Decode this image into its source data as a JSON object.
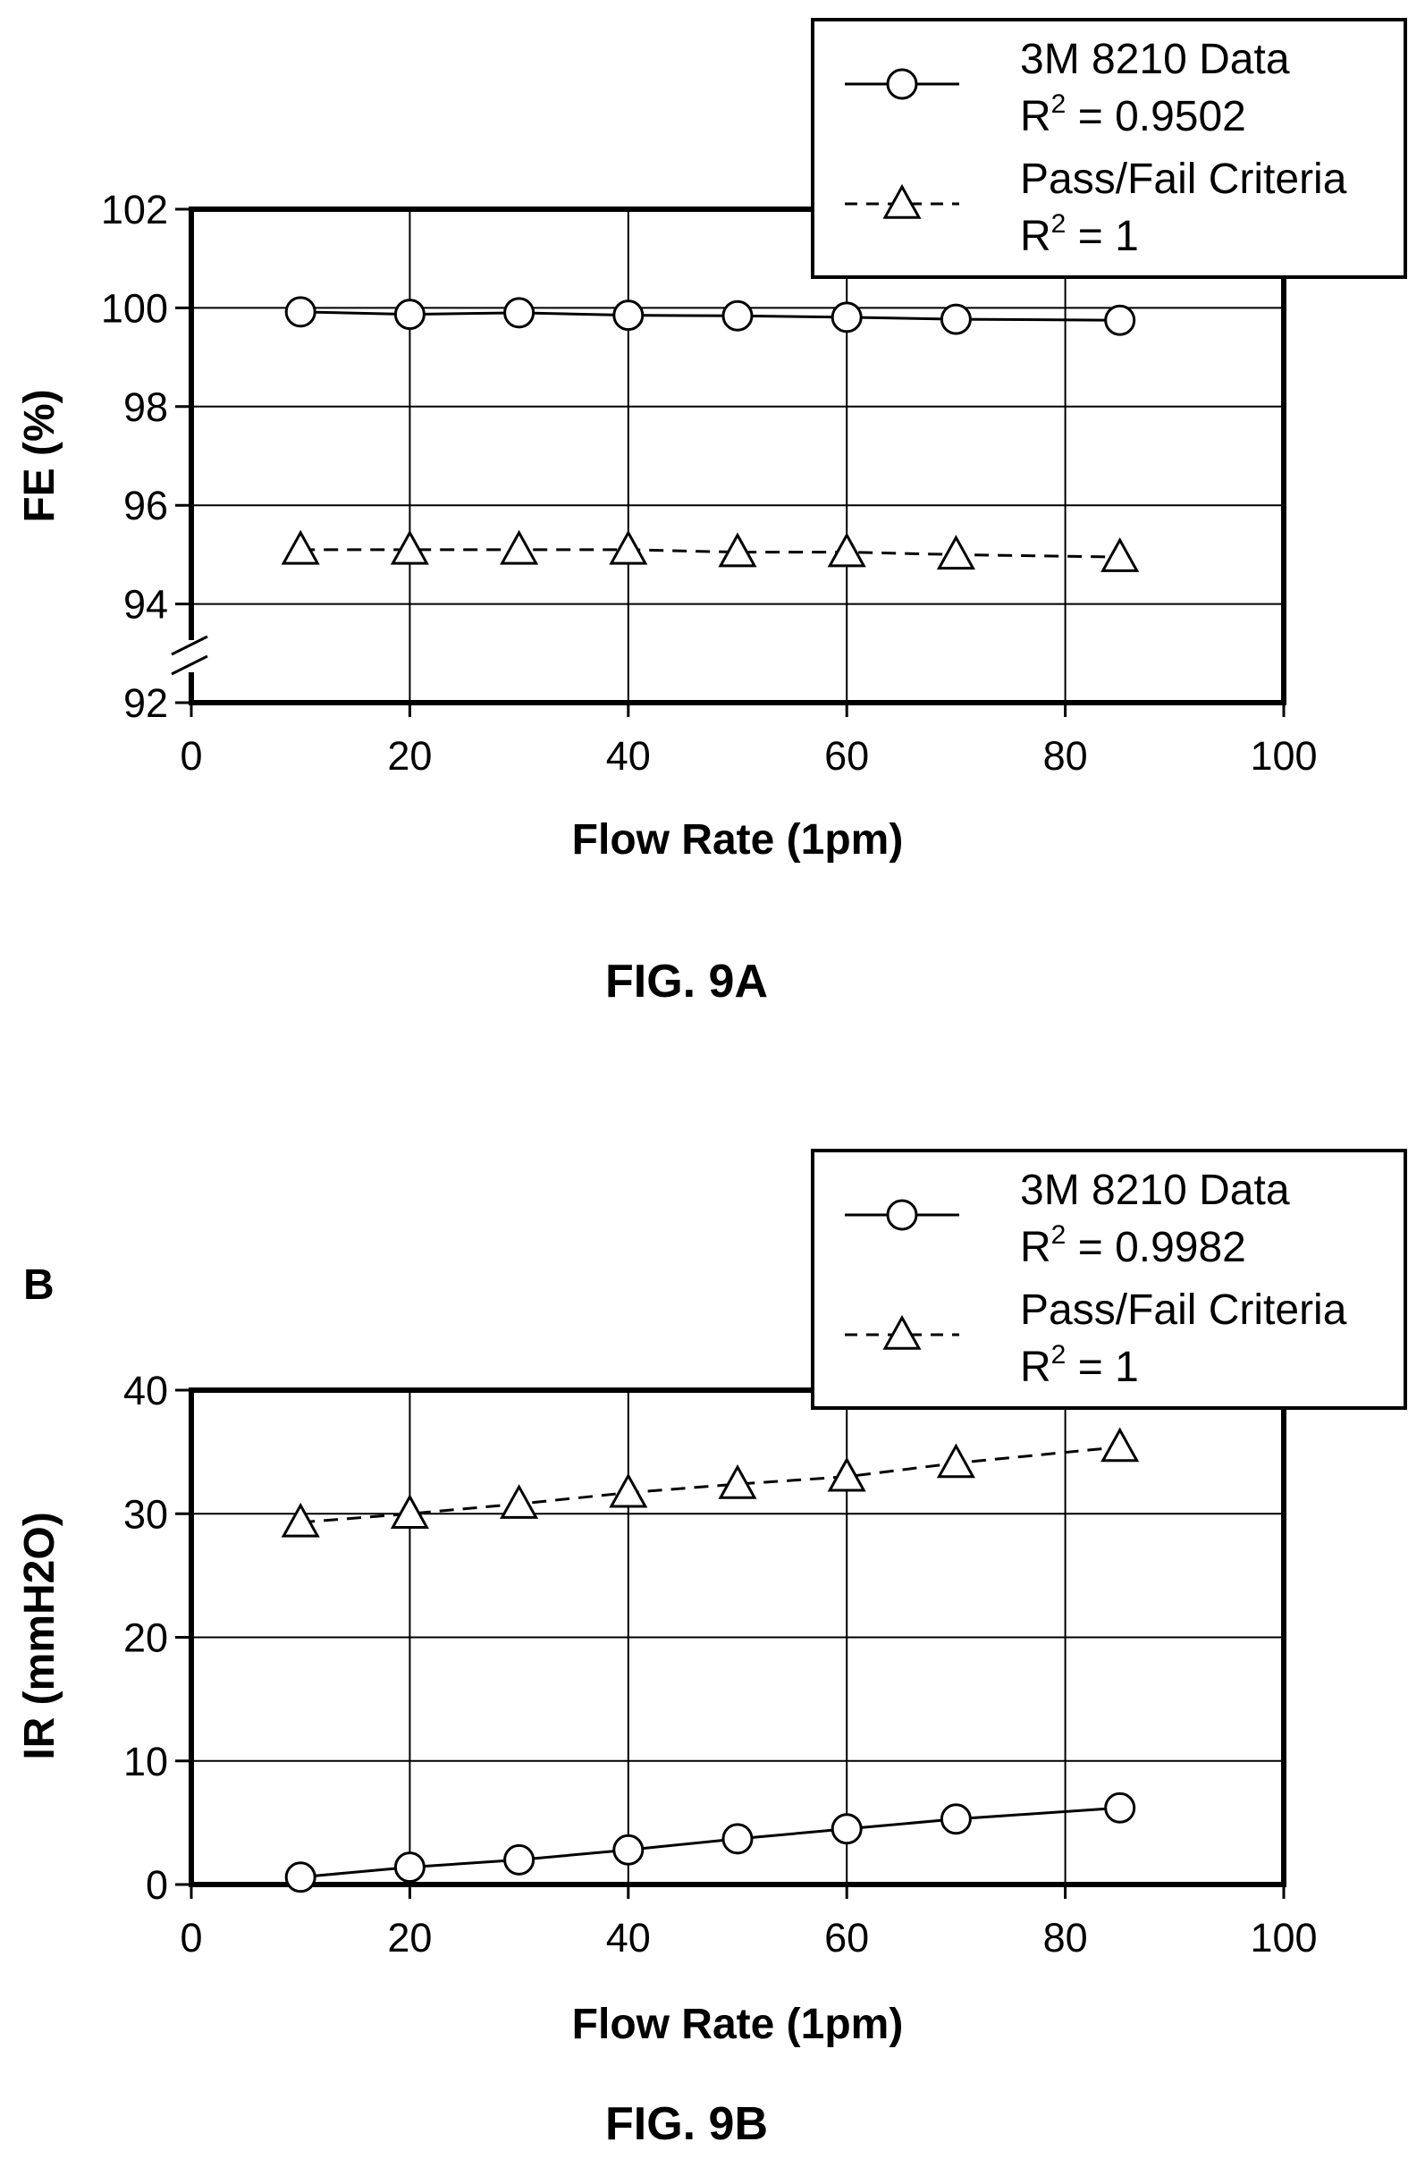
{
  "chart_data": [
    {
      "type": "line",
      "figure_label": "FIG. 9A",
      "panel_label": "",
      "xlabel": "Flow Rate (1pm)",
      "ylabel": "FE (%)",
      "xlim": [
        0,
        100
      ],
      "ylim": [
        92,
        102
      ],
      "xticks": [
        "0",
        "20",
        "40",
        "60",
        "80",
        "100"
      ],
      "yticks": [
        "92",
        "94",
        "96",
        "98",
        "100",
        "102"
      ],
      "grid": true,
      "y_axis_break": true,
      "legend_position": "top-right",
      "x": [
        10,
        20,
        30,
        40,
        50,
        60,
        70,
        85
      ],
      "series": [
        {
          "name": "3M 8210 Data",
          "r2_label": "R",
          "r2_sup": "2",
          "r2_value": " = 0.9502",
          "marker": "circle",
          "line": "solid",
          "values": [
            99.92,
            99.87,
            99.9,
            99.85,
            99.84,
            99.81,
            99.77,
            99.75
          ]
        },
        {
          "name": "Pass/Fail Criteria",
          "r2_label": "R",
          "r2_sup": "2",
          "r2_value": " = 1",
          "marker": "triangle",
          "line": "dashed",
          "values": [
            95.1,
            95.1,
            95.1,
            95.1,
            95.05,
            95.05,
            95.0,
            94.95
          ]
        }
      ]
    },
    {
      "type": "line",
      "figure_label": "FIG. 9B",
      "panel_label": "B",
      "xlabel": "Flow Rate (1pm)",
      "ylabel": "IR (mmH2O)",
      "xlim": [
        0,
        100
      ],
      "ylim": [
        0,
        40
      ],
      "xticks": [
        "0",
        "20",
        "40",
        "60",
        "80",
        "100"
      ],
      "yticks": [
        "0",
        "10",
        "20",
        "30",
        "40"
      ],
      "grid": true,
      "y_axis_break": false,
      "legend_position": "top-right",
      "x": [
        10,
        20,
        30,
        40,
        50,
        60,
        70,
        85
      ],
      "series": [
        {
          "name": "3M 8210 Data",
          "r2_label": "R",
          "r2_sup": "2",
          "r2_value": " = 0.9982",
          "marker": "circle",
          "line": "solid",
          "values": [
            0.6,
            1.4,
            2.0,
            2.8,
            3.7,
            4.5,
            5.3,
            6.2
          ]
        },
        {
          "name": "Pass/Fail Criteria",
          "r2_label": "R",
          "r2_sup": "2",
          "r2_value": " = 1",
          "marker": "triangle",
          "line": "dashed",
          "values": [
            29.3,
            30.0,
            30.8,
            31.7,
            32.4,
            33.0,
            34.1,
            35.4
          ]
        }
      ]
    }
  ]
}
